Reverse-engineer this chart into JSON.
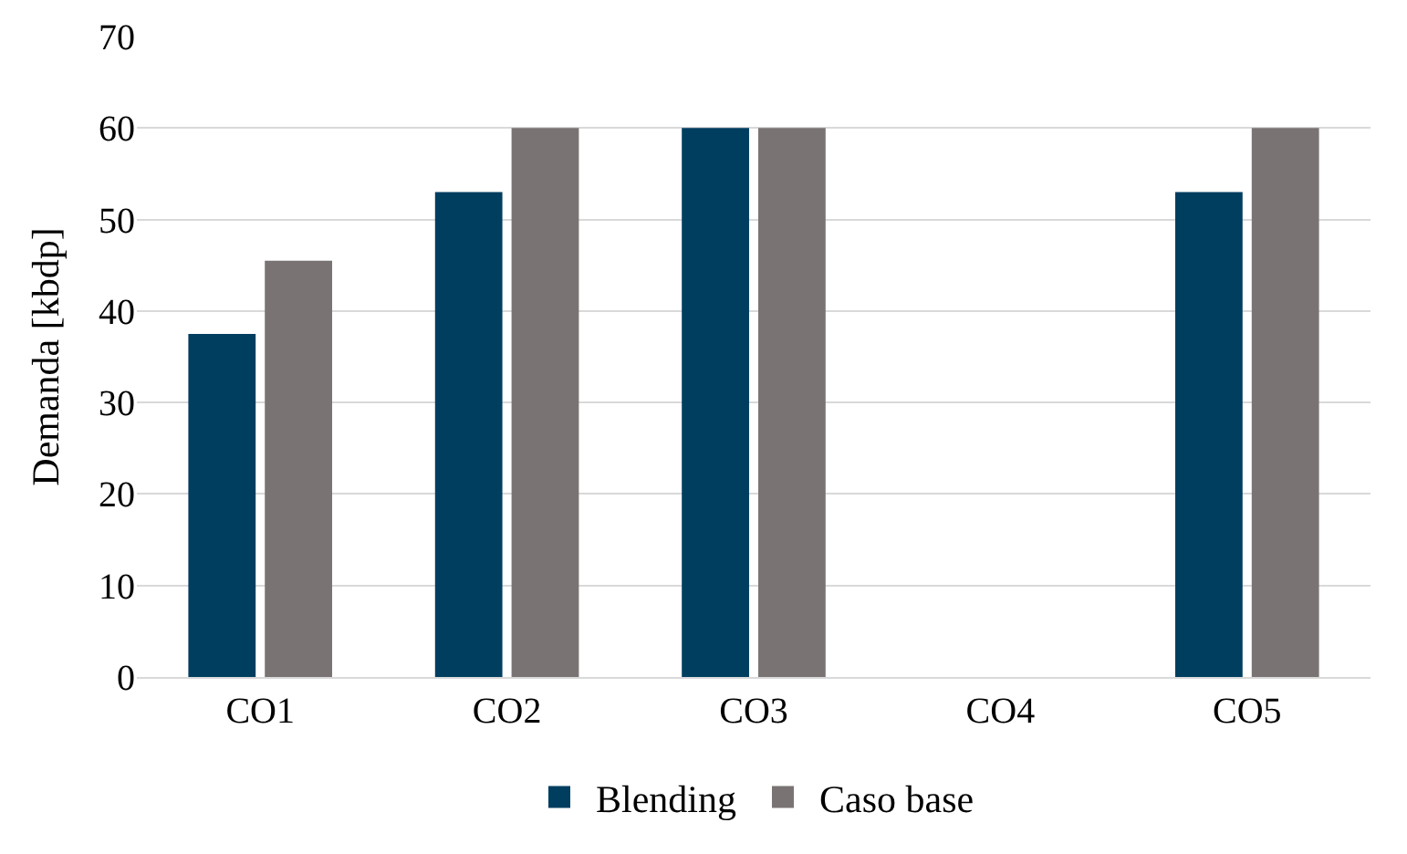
{
  "chart_data": {
    "type": "bar",
    "ylabel": "Demanda [kbdp]",
    "categories": [
      "CO1",
      "CO2",
      "CO3",
      "CO4",
      "CO5"
    ],
    "series": [
      {
        "name": "Blending",
        "color": "#003e60",
        "values": [
          37.5,
          53,
          60,
          0,
          53
        ]
      },
      {
        "name": "Caso base",
        "color": "#797473",
        "values": [
          45.5,
          60,
          60,
          0,
          60
        ]
      }
    ],
    "ylim": [
      0,
      70
    ],
    "yticks": [
      0,
      10,
      20,
      30,
      40,
      50,
      60,
      70
    ],
    "grid": "y",
    "legend": "bottom"
  }
}
